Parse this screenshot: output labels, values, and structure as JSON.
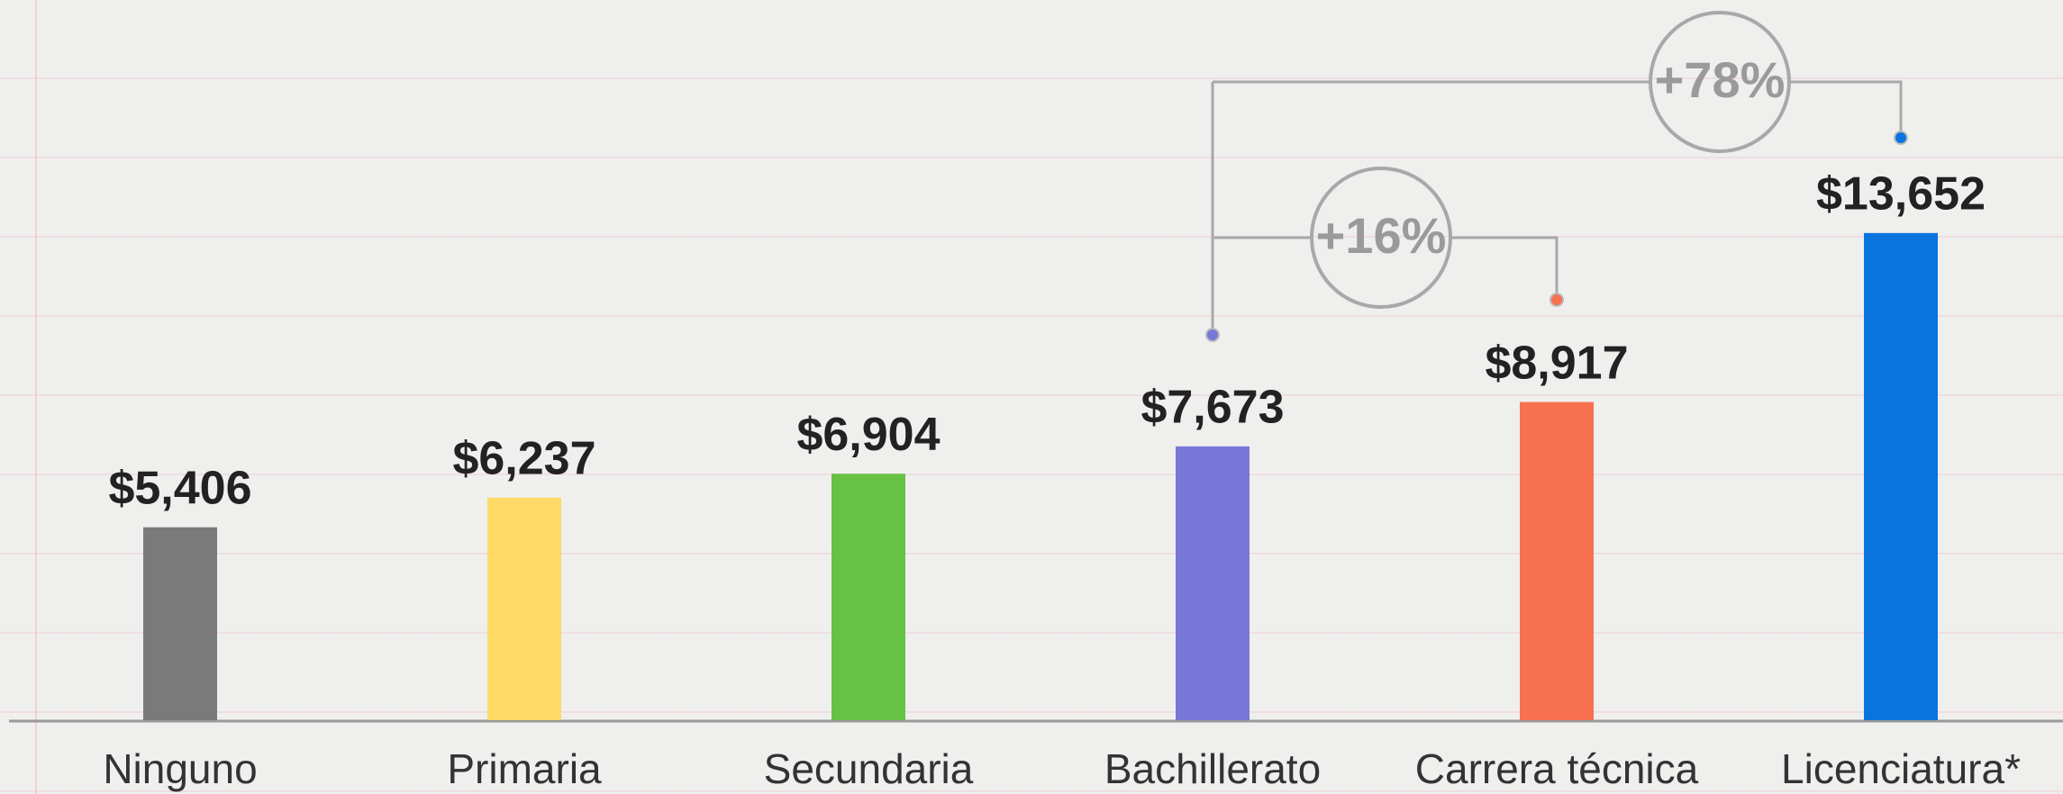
{
  "chart_data": {
    "type": "bar",
    "categories": [
      "Ninguno",
      "Primaria",
      "Secundaria",
      "Bachillerato",
      "Carrera técnica",
      "Licenciatura*"
    ],
    "values": [
      5406,
      6237,
      6904,
      7673,
      8917,
      13652
    ],
    "value_labels": [
      "$5,406",
      "$6,237",
      "$6,904",
      "$7,673",
      "$8,917",
      "$13,652"
    ],
    "colors": [
      "#7a7a7a",
      "#ffd966",
      "#66c144",
      "#7777d9",
      "#f77150",
      "#0a74de"
    ],
    "ylim": [
      0,
      13900
    ],
    "annotations": [
      "+78%",
      "+16%"
    ]
  }
}
